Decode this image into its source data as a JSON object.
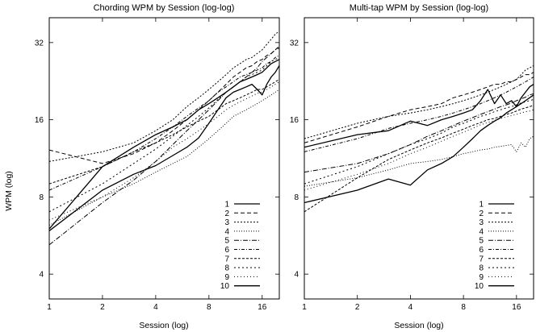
{
  "chart_data": [
    {
      "type": "line",
      "title": "Chording WPM by Session (log-log)",
      "xlabel": "Session (log)",
      "ylabel": "WPM (log)",
      "xscale": "log",
      "yscale": "log",
      "xlim": [
        1,
        20
      ],
      "ylim": [
        3.2,
        40
      ],
      "xticks": [
        1,
        2,
        4,
        8,
        16
      ],
      "yticks": [
        4,
        8,
        16,
        32
      ],
      "grid": false,
      "legend": "bottom-right",
      "x": [
        1,
        2,
        3,
        4,
        5,
        6,
        7,
        8,
        9,
        10,
        11,
        12,
        13,
        14,
        15,
        16,
        17,
        18,
        19,
        20
      ],
      "series": [
        {
          "name": "1",
          "dash": "",
          "width": 1.3,
          "values": [
            5.9,
            8.5,
            9.8,
            10.6,
            11.6,
            12.5,
            13.6,
            15.5,
            17.5,
            19.5,
            20.5,
            21.0,
            21.5,
            22.0,
            21.0,
            20.0,
            22.0,
            23.5,
            24.5,
            26.0
          ]
        },
        {
          "name": "2",
          "dash": "5,3",
          "width": 1,
          "values": [
            12.2,
            10.8,
            11.8,
            13.0,
            14.5,
            16.0,
            17.5,
            19.0,
            20.5,
            22.0,
            23.5,
            24.5,
            25.5,
            26.0,
            27.0,
            27.5,
            28.5,
            29.0,
            30.0,
            31.0
          ]
        },
        {
          "name": "3",
          "dash": "2,2",
          "width": 1,
          "values": [
            11.0,
            12.0,
            13.0,
            14.5,
            16.0,
            18.0,
            19.5,
            21.0,
            22.5,
            24.0,
            25.5,
            26.5,
            27.5,
            28.0,
            29.0,
            30.0,
            31.5,
            33.0,
            34.5,
            35.5
          ]
        },
        {
          "name": "4",
          "dash": "1,2",
          "width": 1,
          "values": [
            6.2,
            8.0,
            9.0,
            10.0,
            10.8,
            11.5,
            12.5,
            13.5,
            14.5,
            15.5,
            16.5,
            17.0,
            17.5,
            18.0,
            18.5,
            19.0,
            19.5,
            20.0,
            20.5,
            21.0
          ]
        },
        {
          "name": "5",
          "dash": "6,2,1,2",
          "width": 1,
          "values": [
            5.2,
            7.6,
            9.3,
            11.0,
            12.8,
            14.5,
            16.0,
            17.5,
            19.0,
            20.5,
            21.5,
            22.5,
            23.5,
            24.5,
            25.5,
            27.0,
            28.0,
            29.0,
            30.0,
            30.5
          ]
        },
        {
          "name": "6",
          "dash": "4,2,1,2",
          "width": 1,
          "values": [
            8.5,
            10.5,
            12.0,
            13.5,
            15.0,
            16.5,
            17.8,
            19.0,
            20.5,
            21.5,
            22.5,
            23.5,
            24.0,
            24.5,
            25.0,
            25.5,
            26.5,
            27.0,
            28.0,
            28.5
          ]
        },
        {
          "name": "7",
          "dash": "3,2",
          "width": 1,
          "values": [
            9.0,
            10.5,
            12.0,
            13.0,
            14.0,
            15.0,
            15.8,
            16.5,
            17.5,
            18.5,
            19.0,
            19.5,
            20.0,
            20.5,
            21.0,
            21.0,
            21.5,
            22.0,
            22.5,
            23.0
          ]
        },
        {
          "name": "8",
          "dash": "2,3",
          "width": 1,
          "values": [
            7.0,
            9.0,
            10.8,
            12.3,
            13.8,
            15.2,
            16.5,
            17.8,
            19.2,
            20.5,
            21.5,
            22.5,
            23.5,
            24.0,
            24.5,
            25.0,
            26.0,
            27.0,
            27.5,
            28.0
          ]
        },
        {
          "name": "9",
          "dash": "1,3",
          "width": 1,
          "values": [
            6.5,
            8.0,
            9.5,
            11.0,
            12.5,
            13.5,
            14.5,
            15.5,
            16.5,
            17.5,
            18.2,
            18.8,
            19.3,
            19.8,
            20.3,
            20.5,
            21.0,
            21.5,
            22.0,
            22.5
          ]
        },
        {
          "name": "10",
          "dash": "",
          "width": 1.3,
          "values": [
            6.0,
            10.5,
            12.5,
            14.0,
            15.0,
            16.0,
            17.5,
            18.5,
            19.5,
            20.5,
            21.5,
            22.5,
            23.0,
            23.5,
            24.0,
            24.5,
            25.5,
            26.5,
            27.0,
            27.5
          ]
        }
      ]
    },
    {
      "type": "line",
      "title": "Multi-tap WPM by Session (log-log)",
      "xlabel": "Session (log)",
      "ylabel": "",
      "xscale": "log",
      "yscale": "log",
      "xlim": [
        1,
        20
      ],
      "ylim": [
        3.2,
        40
      ],
      "xticks": [
        1,
        2,
        4,
        8,
        16
      ],
      "yticks": [
        4,
        8,
        16,
        32
      ],
      "grid": false,
      "legend": "bottom-right",
      "x": [
        1,
        2,
        3,
        4,
        5,
        6,
        7,
        8,
        9,
        10,
        11,
        12,
        13,
        14,
        15,
        16,
        17,
        18,
        19,
        20
      ],
      "series": [
        {
          "name": "1",
          "dash": "",
          "width": 1.3,
          "values": [
            7.6,
            8.5,
            9.4,
            8.9,
            10.2,
            10.8,
            11.5,
            12.5,
            13.5,
            14.5,
            15.2,
            15.8,
            16.3,
            17.0,
            17.5,
            18.0,
            18.5,
            19.0,
            19.5,
            20.0
          ]
        },
        {
          "name": "2",
          "dash": "5,3",
          "width": 1,
          "values": [
            13.0,
            15.0,
            16.5,
            17.5,
            18.0,
            18.5,
            19.5,
            20.0,
            20.5,
            21.0,
            21.5,
            22.0,
            22.0,
            22.5,
            22.5,
            23.0,
            23.5,
            24.0,
            24.0,
            24.5
          ]
        },
        {
          "name": "3",
          "dash": "2,2",
          "width": 1,
          "values": [
            13.5,
            15.5,
            16.5,
            17.0,
            17.5,
            18.0,
            18.5,
            19.0,
            19.5,
            20.0,
            20.5,
            21.0,
            21.5,
            22.0,
            22.5,
            23.0,
            24.0,
            25.0,
            25.5,
            26.0
          ]
        },
        {
          "name": "4",
          "dash": "1,2",
          "width": 1,
          "values": [
            8.8,
            9.5,
            10.2,
            10.8,
            11.0,
            11.2,
            11.5,
            11.8,
            12.0,
            12.2,
            12.3,
            12.5,
            12.6,
            12.7,
            12.8,
            12.0,
            13.0,
            12.5,
            13.5,
            13.8
          ]
        },
        {
          "name": "5",
          "dash": "6,2,1,2",
          "width": 1,
          "values": [
            10.0,
            10.8,
            11.8,
            12.8,
            13.8,
            14.5,
            15.2,
            15.8,
            16.3,
            16.8,
            17.2,
            17.6,
            18.0,
            18.3,
            18.6,
            19.0,
            19.3,
            19.6,
            20.0,
            20.2
          ]
        },
        {
          "name": "6",
          "dash": "4,2,1,2",
          "width": 1,
          "values": [
            12.0,
            13.5,
            14.8,
            15.5,
            16.0,
            16.5,
            17.0,
            17.5,
            18.0,
            18.5,
            19.0,
            19.5,
            20.0,
            20.5,
            21.0,
            21.5,
            22.0,
            22.5,
            23.0,
            23.5
          ]
        },
        {
          "name": "7",
          "dash": "3,2",
          "width": 1,
          "values": [
            7.0,
            9.5,
            11.2,
            12.2,
            13.0,
            13.6,
            14.2,
            14.7,
            15.2,
            15.6,
            16.0,
            16.2,
            16.5,
            16.8,
            17.0,
            17.3,
            17.6,
            17.8,
            18.0,
            18.2
          ]
        },
        {
          "name": "8",
          "dash": "2,3",
          "width": 1,
          "values": [
            9.0,
            10.5,
            11.8,
            12.8,
            13.5,
            14.2,
            15.0,
            15.5,
            16.0,
            16.5,
            16.8,
            17.2,
            17.5,
            17.8,
            18.0,
            18.3,
            18.6,
            18.8,
            19.0,
            19.2
          ]
        },
        {
          "name": "9",
          "dash": "1,3",
          "width": 1,
          "values": [
            8.5,
            9.8,
            10.8,
            11.8,
            12.5,
            13.2,
            13.8,
            14.3,
            14.8,
            15.3,
            15.6,
            15.9,
            16.2,
            16.4,
            16.6,
            16.8,
            17.0,
            17.2,
            17.3,
            17.5
          ]
        },
        {
          "name": "10",
          "dash": "",
          "width": 1.3,
          "values": [
            12.5,
            14.0,
            14.5,
            15.8,
            15.2,
            16.0,
            16.5,
            17.0,
            17.5,
            19.0,
            21.0,
            18.5,
            20.0,
            18.5,
            19.0,
            18.0,
            19.5,
            20.5,
            21.5,
            22.0
          ]
        }
      ]
    }
  ]
}
